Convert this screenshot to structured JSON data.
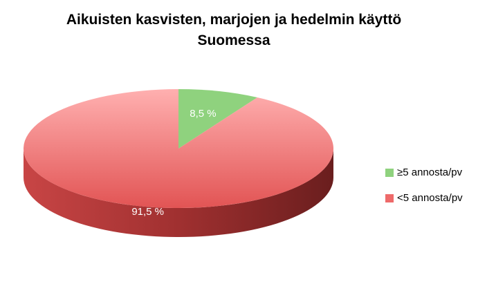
{
  "chart_data": {
    "type": "pie",
    "title": "Aikuisten kasvisten, marjojen ja hedelmin käyttö Suomessa",
    "categories": [
      "≥5 annosta/pv",
      "<5 annosta/pv"
    ],
    "values": [
      8.5,
      91.5
    ],
    "value_labels": [
      "8,5 %",
      "91,5 %"
    ],
    "colors": [
      "#8fd27e",
      "#ee6a6a"
    ],
    "legend": "right"
  }
}
